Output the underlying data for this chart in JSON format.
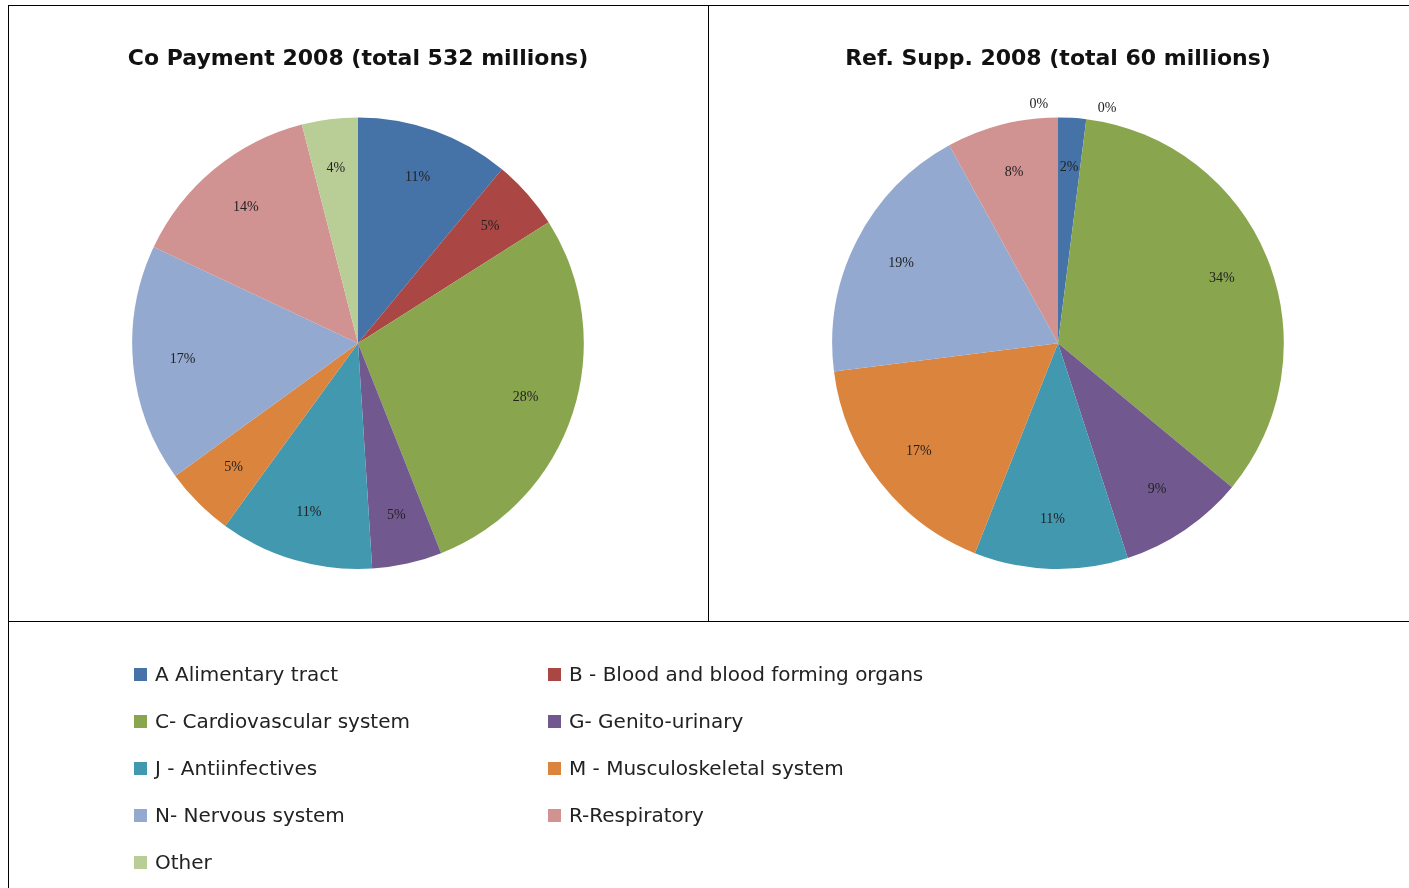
{
  "chart_data": [
    {
      "type": "pie",
      "title": "Co Payment 2008 (total 532 millions)",
      "categories": [
        "A  Alimentary tract",
        "B - Blood and blood forming organs",
        "C- Cardiovascular  system",
        "G- Genito-urinary",
        "J - Antiinfectives",
        "M -  Musculoskeletal system",
        "N- Nervous system",
        "R-Respiratory",
        "Other"
      ],
      "values": [
        11,
        5,
        28,
        5,
        11,
        5,
        17,
        14,
        4
      ],
      "value_labels": [
        "11%",
        "5%",
        "28%",
        "5%",
        "11%",
        "5%",
        "17%",
        "14%",
        "4%"
      ],
      "colors": [
        "#4572a7",
        "#aa4643",
        "#89a54e",
        "#71588f",
        "#4198af",
        "#db843d",
        "#93a9cf",
        "#d19392",
        "#b9cd96"
      ],
      "legend": "bottom"
    },
    {
      "type": "pie",
      "title": "Ref. Supp. 2008 (total 60 millions)",
      "categories": [
        null,
        null,
        null,
        null,
        null,
        null,
        null,
        null,
        null
      ],
      "values": [
        2,
        0,
        34,
        9,
        11,
        17,
        19,
        8,
        0
      ],
      "value_labels": [
        "2%",
        "0%",
        "34%",
        "9%",
        "11%",
        "17%",
        "19%",
        "8%",
        "0%"
      ],
      "colors": [
        "#4572a7",
        "#aa4643",
        "#89a54e",
        "#71588f",
        "#4198af",
        "#db843d",
        "#93a9cf",
        "#d19392",
        "#b9cd96"
      ]
    }
  ]
}
